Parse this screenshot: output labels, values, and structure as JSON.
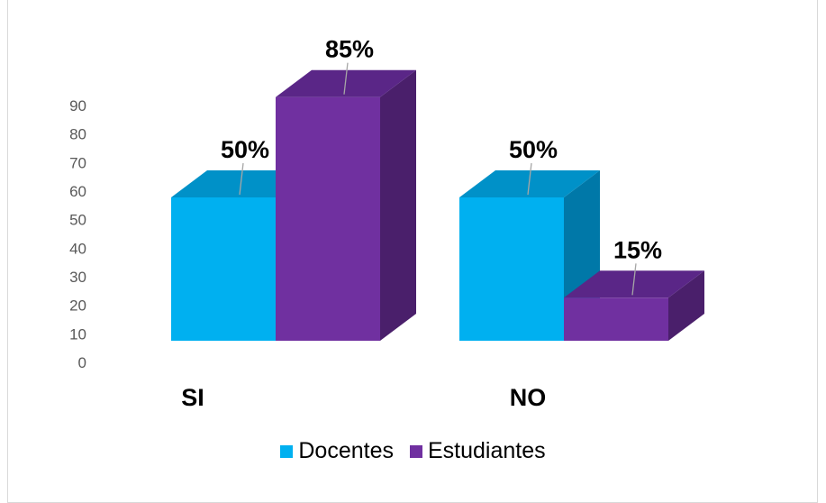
{
  "chart_data": {
    "type": "bar",
    "categories": [
      "SI",
      "NO"
    ],
    "series": [
      {
        "name": "Docentes",
        "values": [
          50,
          50
        ],
        "labels": [
          "50%",
          "50%"
        ],
        "color": "#00b0f0",
        "side_color": "#0078a8",
        "top_color": "#0091c8"
      },
      {
        "name": "Estudiantes",
        "values": [
          85,
          15
        ],
        "labels": [
          "85%",
          "15%"
        ],
        "color": "#7030a0",
        "side_color": "#4a1f6b",
        "top_color": "#5a2687"
      }
    ],
    "y_ticks": [
      "0",
      "10",
      "20",
      "30",
      "40",
      "50",
      "60",
      "70",
      "80",
      "90"
    ],
    "ylim": [
      0,
      90
    ],
    "grid": false,
    "legend_position": "bottom",
    "title": ""
  }
}
